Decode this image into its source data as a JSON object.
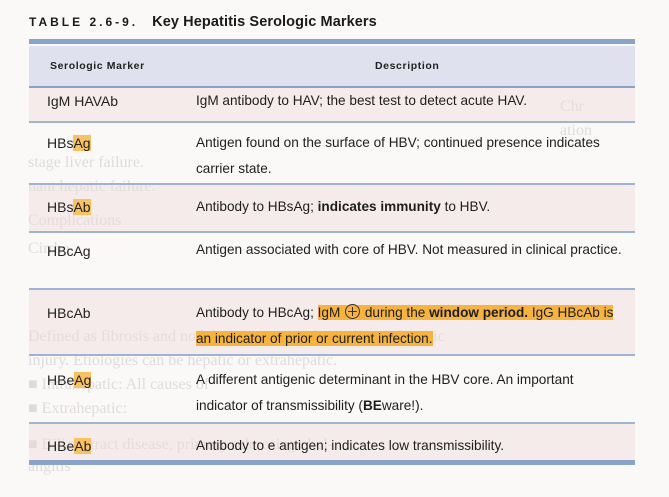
{
  "table": {
    "number": "TABLE 2.6-9.",
    "title": "Key Hepatitis Serologic Markers",
    "headers": {
      "marker": "Serologic Marker",
      "description": "Description"
    }
  },
  "rows": [
    {
      "marker": [
        {
          "t": "IgM HAVAb",
          "hl": false
        }
      ],
      "desc": [
        {
          "t": "IgM antibody to HAV; the best test to detect acute HAV.",
          "hl": false,
          "bold": false
        }
      ]
    },
    {
      "marker": [
        {
          "t": "HBs",
          "hl": false
        },
        {
          "t": "Ag",
          "hl": true
        }
      ],
      "desc": [
        {
          "t": "Antigen found on the surface of HBV; continued presence indicates carrier state.",
          "hl": false,
          "bold": false
        }
      ]
    },
    {
      "marker": [
        {
          "t": "HBs",
          "hl": false
        },
        {
          "t": "Ab",
          "hl": true
        }
      ],
      "desc": [
        {
          "t": "Antibody to HBsAg; ",
          "hl": false,
          "bold": false
        },
        {
          "t": "indicates immunity",
          "hl": false,
          "bold": true
        },
        {
          "t": " to HBV.",
          "hl": false,
          "bold": false
        }
      ]
    },
    {
      "marker": [
        {
          "t": "HBcAg",
          "hl": false
        }
      ],
      "desc": [
        {
          "t": "Antigen associated with core of HBV. Not measured in clinical practice.",
          "hl": false,
          "bold": false
        }
      ]
    },
    {
      "marker": [
        {
          "t": "HBcAb",
          "hl": false
        }
      ],
      "desc": [
        {
          "t": "Antibody to HBcAg; ",
          "hl": false,
          "bold": false
        },
        {
          "t": "IgM ",
          "hl": true,
          "bold": false
        },
        {
          "t": "⊕",
          "hl": true,
          "bold": false,
          "circle": true
        },
        {
          "t": " during the ",
          "hl": true,
          "bold": false
        },
        {
          "t": "window period.",
          "hl": true,
          "bold": true
        },
        {
          "t": " IgG HBcAb is an indicator of prior or current infection.",
          "hl": true,
          "bold": false
        }
      ]
    },
    {
      "marker": [
        {
          "t": "HBe",
          "hl": false
        },
        {
          "t": "Ag",
          "hl": true
        }
      ],
      "desc": [
        {
          "t": "A different antigenic determinant in the HBV core. An important indicator of transmissibility (",
          "hl": false,
          "bold": false
        },
        {
          "t": "BE",
          "hl": false,
          "bold": true
        },
        {
          "t": "ware!).",
          "hl": false,
          "bold": false
        }
      ]
    },
    {
      "marker": [
        {
          "t": "HBe",
          "hl": false
        },
        {
          "t": "Ab",
          "hl": true
        }
      ],
      "desc": [
        {
          "t": "Antibody to e antigen; indicates low transmissibility.",
          "hl": false,
          "bold": false
        }
      ]
    }
  ]
}
